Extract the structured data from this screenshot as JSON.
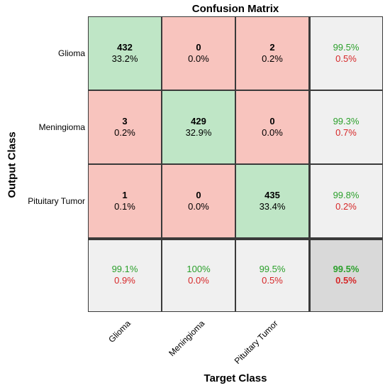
{
  "chart_data": {
    "type": "heatmap",
    "title": "Confusion Matrix",
    "xlabel": "Target Class",
    "ylabel": "Output Class",
    "classes": [
      "Glioma",
      "Meningioma",
      "Pituitary Tumor"
    ],
    "matrix": [
      [
        432,
        0,
        2
      ],
      [
        3,
        429,
        0
      ],
      [
        1,
        0,
        435
      ]
    ],
    "matrix_percent": [
      [
        "33.2%",
        "0.0%",
        "0.2%"
      ],
      [
        "0.2%",
        "32.9%",
        "0.0%"
      ],
      [
        "0.1%",
        "0.0%",
        "33.4%"
      ]
    ],
    "row_summary": [
      [
        "99.5%",
        "0.5%"
      ],
      [
        "99.3%",
        "0.7%"
      ],
      [
        "99.8%",
        "0.2%"
      ]
    ],
    "col_summary": [
      [
        "99.1%",
        "0.9%"
      ],
      [
        "100%",
        "0.0%"
      ],
      [
        "99.5%",
        "0.5%"
      ]
    ],
    "overall": [
      "99.5%",
      "0.5%"
    ],
    "colors": {
      "diagonal": "#bfe6c6",
      "off_diagonal": "#f8c4be",
      "summary": "#f0f0f0",
      "overall": "#d9d9d9",
      "correct_text": "#2ca02c",
      "error_text": "#d62728"
    }
  }
}
